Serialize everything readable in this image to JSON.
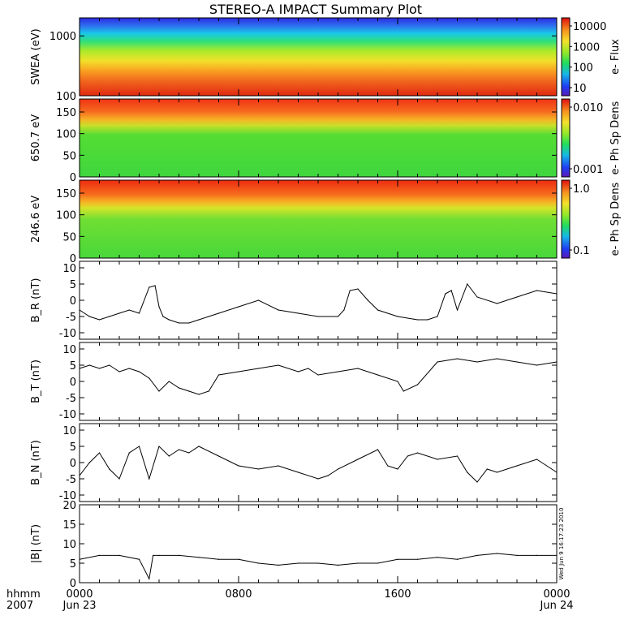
{
  "title": "STEREO-A IMPACT Summary Plot",
  "footer": {
    "hhmm": "hhmm",
    "year": "2007",
    "ticks": [
      "0000",
      "0800",
      "1600",
      "0000"
    ],
    "dates": [
      "Jun 23",
      "",
      "",
      "Jun 24"
    ]
  },
  "timestamp": "Wed Jun  9 16:17:23 2010",
  "chart_data": [
    {
      "type": "heatmap",
      "ylabel": "SWEA (eV)",
      "yscale": "log",
      "ylim": [
        100,
        2000
      ],
      "yticks": [
        "1000",
        "100"
      ],
      "colorbar": {
        "label": "e- Flux",
        "scale": "log",
        "ticks": [
          "10000",
          "1000",
          "100",
          "10"
        ]
      }
    },
    {
      "type": "heatmap",
      "ylabel": "650.7 eV",
      "ylim": [
        0,
        180
      ],
      "yticks": [
        "150",
        "100",
        "50",
        "0"
      ],
      "colorbar": {
        "label": "e- Ph Sp Dens",
        "scale": "log",
        "ticks": [
          "0.010",
          "0.001"
        ]
      }
    },
    {
      "type": "heatmap",
      "ylabel": "246.6 eV",
      "ylim": [
        0,
        180
      ],
      "yticks": [
        "150",
        "100",
        "50",
        "0"
      ],
      "colorbar": {
        "label": "e- Ph Sp Dens",
        "scale": "log",
        "ticks": [
          "1.0",
          "0.1"
        ]
      }
    },
    {
      "type": "line",
      "ylabel": "B_R (nT)",
      "ylim": [
        -12,
        12
      ],
      "yticks": [
        "10",
        "5",
        "0",
        "-5",
        "-10"
      ],
      "x": [
        0,
        0.5,
        1,
        1.5,
        2,
        2.5,
        3,
        3.5,
        3.8,
        4,
        4.2,
        4.5,
        5,
        5.5,
        6,
        7,
        8,
        9,
        10,
        11,
        12,
        13,
        13.3,
        13.6,
        14,
        14.5,
        15,
        16,
        17,
        17.5,
        18,
        18.4,
        18.7,
        19,
        19.5,
        20,
        21,
        22,
        23,
        24
      ],
      "y": [
        -3,
        -5,
        -6,
        -5,
        -4,
        -3,
        -4,
        4,
        4.5,
        -2,
        -5,
        -6,
        -7,
        -7,
        -6,
        -4,
        -2,
        0,
        -3,
        -4,
        -5,
        -5,
        -3,
        3,
        3.5,
        0,
        -3,
        -5,
        -6,
        -6,
        -5,
        2,
        3,
        -3,
        5,
        1,
        -1,
        1,
        3,
        2
      ]
    },
    {
      "type": "line",
      "ylabel": "B_T (nT)",
      "ylim": [
        -12,
        12
      ],
      "yticks": [
        "10",
        "5",
        "0",
        "-5",
        "-10"
      ],
      "x": [
        0,
        0.5,
        1,
        1.5,
        2,
        2.5,
        3,
        3.5,
        4,
        4.5,
        5,
        5.5,
        6,
        6.5,
        7,
        8,
        9,
        10,
        11,
        11.5,
        12,
        13,
        14,
        15,
        16,
        16.3,
        17,
        18,
        19,
        20,
        21,
        22,
        23,
        24
      ],
      "y": [
        4,
        5,
        4,
        5,
        3,
        4,
        3,
        1,
        -3,
        0,
        -2,
        -3,
        -4,
        -3,
        2,
        3,
        4,
        5,
        3,
        4,
        2,
        3,
        4,
        2,
        0,
        -3,
        -1,
        6,
        7,
        6,
        7,
        6,
        5,
        6
      ]
    },
    {
      "type": "line",
      "ylabel": "B_N (nT)",
      "ylim": [
        -12,
        12
      ],
      "yticks": [
        "10",
        "5",
        "0",
        "-5",
        "-10"
      ],
      "x": [
        0,
        0.5,
        1,
        1.5,
        2,
        2.5,
        3,
        3.5,
        4,
        4.5,
        5,
        5.5,
        6,
        7,
        8,
        9,
        10,
        11,
        12,
        12.5,
        13,
        14,
        15,
        15.5,
        16,
        16.5,
        17,
        18,
        19,
        19.5,
        20,
        20.5,
        21,
        22,
        23,
        24
      ],
      "y": [
        -4,
        0,
        3,
        -2,
        -5,
        3,
        5,
        -5,
        5,
        2,
        4,
        3,
        5,
        2,
        -1,
        -2,
        -1,
        -3,
        -5,
        -4,
        -2,
        1,
        4,
        -1,
        -2,
        2,
        3,
        1,
        2,
        -3,
        -6,
        -2,
        -3,
        -1,
        1,
        -3
      ]
    },
    {
      "type": "line",
      "ylabel": "|B| (nT)",
      "ylim": [
        0,
        20
      ],
      "yticks": [
        "20",
        "15",
        "10",
        "5",
        "0"
      ],
      "x": [
        0,
        1,
        2,
        3,
        3.5,
        3.7,
        4,
        5,
        6,
        7,
        8,
        9,
        10,
        11,
        12,
        13,
        14,
        15,
        16,
        17,
        18,
        19,
        20,
        21,
        22,
        23,
        24
      ],
      "y": [
        6,
        7,
        7,
        6,
        1,
        7,
        7,
        7,
        6.5,
        6,
        6,
        5,
        4.5,
        5,
        5,
        4.5,
        5,
        5,
        6,
        6,
        6.5,
        6,
        7,
        7.5,
        7,
        7,
        7
      ]
    }
  ]
}
